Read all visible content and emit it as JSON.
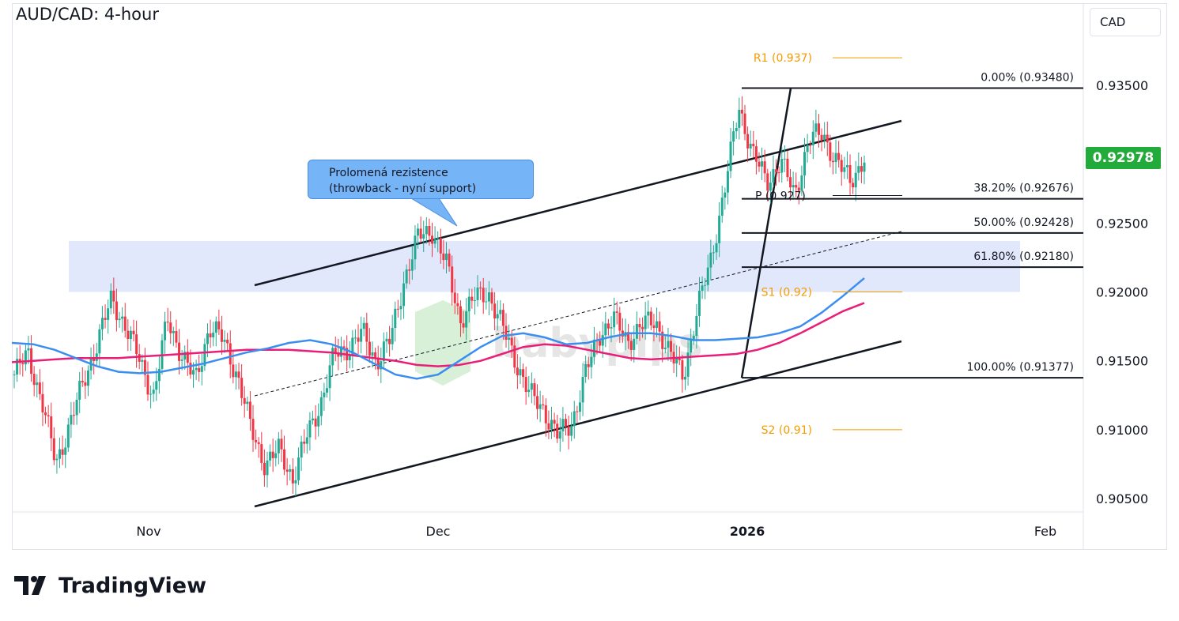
{
  "chart_title": "AUD/CAD: 4-hour",
  "currency_label": "CAD",
  "brand_name": "TradingView",
  "watermark": "babypips",
  "callout": {
    "line1": "Prolomená rezistence",
    "line2": "(throwback - nyní support)"
  },
  "last_price": "0.92978",
  "colors": {
    "up": "#22ab94",
    "down": "#f23645",
    "candle_body": "#131722",
    "ma_fast": "#3b8ef0",
    "ma_slow": "#e91e78",
    "zone": "#dfe6fb",
    "pivot": "#f59b00",
    "price_tag": "#22ab3a"
  },
  "chart_data": {
    "type": "candlestick",
    "title": "AUD/CAD: 4-hour",
    "ylabel": "CAD",
    "ylim": [
      0.9035,
      0.9375
    ],
    "x_ticks": [
      {
        "label": "Nov",
        "bold": false
      },
      {
        "label": "Dec",
        "bold": false
      },
      {
        "label": "2026",
        "bold": true
      },
      {
        "label": "Feb",
        "bold": false
      }
    ],
    "y_ticks": [
      "0.93500",
      "0.92500",
      "0.92000",
      "0.91500",
      "0.91000",
      "0.90500"
    ],
    "y_tick_values": [
      0.935,
      0.925,
      0.92,
      0.915,
      0.91,
      0.905
    ],
    "fibonacci": [
      {
        "label": "0.00% (0.93480)",
        "value": 0.9348
      },
      {
        "label": "38.20% (0.92676)",
        "value": 0.92676
      },
      {
        "label": "50.00% (0.92428)",
        "value": 0.92428
      },
      {
        "label": "61.80% (0.92180)",
        "value": 0.9218
      },
      {
        "label": "100.00% (0.91377)",
        "value": 0.91377
      }
    ],
    "pivots": [
      {
        "label": "R1 (0.937)",
        "value": 0.937
      },
      {
        "label": "P (0.927)",
        "value": 0.927
      },
      {
        "label": "S1 (0.92)",
        "value": 0.92
      },
      {
        "label": "S2 (0.91)",
        "value": 0.91
      }
    ],
    "zone": [
      0.92,
      0.9237
    ],
    "last_price": 0.92978,
    "anchors": [
      0.914,
      0.9155,
      0.912,
      0.9075,
      0.9105,
      0.9135,
      0.9165,
      0.9195,
      0.9175,
      0.915,
      0.9125,
      0.918,
      0.9155,
      0.9135,
      0.9175,
      0.9165,
      0.914,
      0.91,
      0.9075,
      0.9085,
      0.9065,
      0.9095,
      0.912,
      0.9155,
      0.916,
      0.917,
      0.915,
      0.9165,
      0.921,
      0.924,
      0.9245,
      0.922,
      0.918,
      0.9195,
      0.92,
      0.9175,
      0.915,
      0.9125,
      0.9115,
      0.9095,
      0.9105,
      0.914,
      0.917,
      0.918,
      0.9165,
      0.9175,
      0.918,
      0.9155,
      0.914,
      0.9185,
      0.9225,
      0.9275,
      0.9335,
      0.93,
      0.928,
      0.9295,
      0.927,
      0.931,
      0.9315,
      0.9295,
      0.928,
      0.9298
    ],
    "ma_fast": [
      0.9163,
      0.9162,
      0.9158,
      0.9152,
      0.9146,
      0.9142,
      0.9141,
      0.9142,
      0.9145,
      0.9148,
      0.9152,
      0.9156,
      0.9159,
      0.9163,
      0.9165,
      0.9162,
      0.9156,
      0.9148,
      0.914,
      0.9137,
      0.914,
      0.915,
      0.916,
      0.9168,
      0.917,
      0.9167,
      0.9162,
      0.9163,
      0.9167,
      0.917,
      0.917,
      0.9168,
      0.9165,
      0.9165,
      0.9166,
      0.9167,
      0.917,
      0.9175,
      0.9185,
      0.9197,
      0.921
    ],
    "ma_slow": [
      0.9149,
      0.915,
      0.9151,
      0.9152,
      0.9152,
      0.9152,
      0.9153,
      0.9154,
      0.9155,
      0.9156,
      0.9157,
      0.9158,
      0.9158,
      0.9158,
      0.9157,
      0.9156,
      0.9154,
      0.9152,
      0.915,
      0.9147,
      0.9146,
      0.9147,
      0.915,
      0.9155,
      0.916,
      0.9162,
      0.9161,
      0.9158,
      0.9155,
      0.9152,
      0.9151,
      0.9152,
      0.9153,
      0.9154,
      0.9155,
      0.9158,
      0.9163,
      0.917,
      0.9178,
      0.9186,
      0.9192
    ]
  }
}
